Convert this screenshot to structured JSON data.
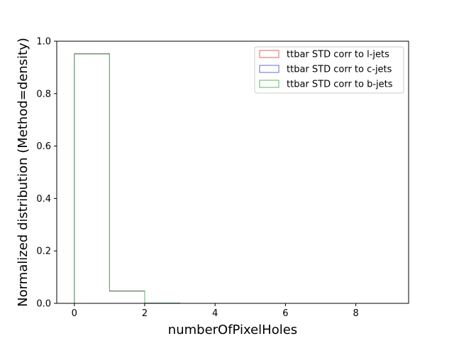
{
  "chart_data": {
    "type": "histogram",
    "xlabel": "numberOfPixelHoles",
    "ylabel": "Normalized distribution (Method=density)",
    "xlim": [
      -0.5,
      9.5
    ],
    "ylim": [
      0,
      1.0
    ],
    "x_ticks": [
      "0",
      "2",
      "4",
      "6",
      "8"
    ],
    "y_ticks": [
      "0.0",
      "0.2",
      "0.4",
      "0.6",
      "0.8",
      "1.0"
    ],
    "bin_edges": [
      0,
      1,
      2,
      3,
      4,
      5,
      6,
      7,
      8,
      9
    ],
    "histtype": "step",
    "legend_position": "upper right",
    "series": [
      {
        "name": "ttbar STD corr to l-jets",
        "color": "#e8625d",
        "values": [
          0.953,
          0.046,
          0.001,
          0,
          0,
          0,
          0,
          0,
          0
        ]
      },
      {
        "name": "ttbar STD corr to c-jets",
        "color": "#6b6bd6",
        "values": [
          0.952,
          0.047,
          0.001,
          0,
          0,
          0,
          0,
          0,
          0
        ]
      },
      {
        "name": "ttbar STD corr to b-jets",
        "color": "#5cb85c",
        "values": [
          0.951,
          0.048,
          0.001,
          0,
          0,
          0,
          0,
          0,
          0
        ]
      }
    ]
  }
}
